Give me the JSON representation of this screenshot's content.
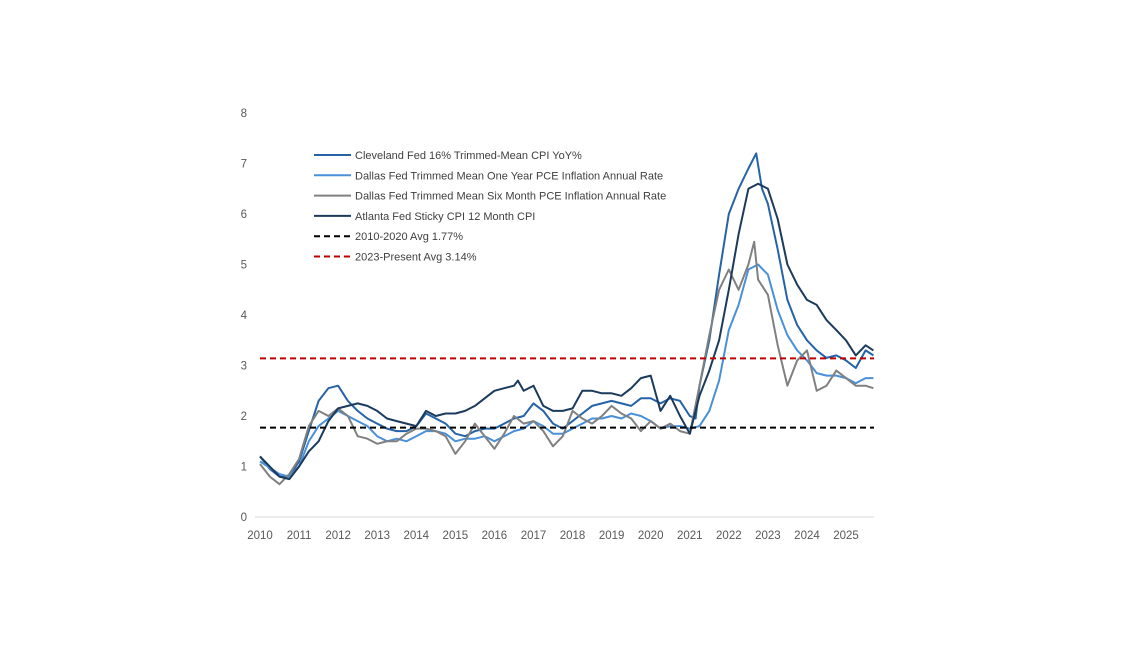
{
  "chart_data": {
    "type": "line",
    "title": "",
    "xlabel": "",
    "ylabel": "",
    "xlim": [
      2010,
      2025.7
    ],
    "ylim": [
      0,
      8
    ],
    "x_ticks": [
      "2010",
      "2011",
      "2012",
      "2013",
      "2014",
      "2015",
      "2016",
      "2017",
      "2018",
      "2019",
      "2020",
      "2021",
      "2022",
      "2023",
      "2024",
      "2025"
    ],
    "y_ticks": [
      "0",
      "1",
      "2",
      "3",
      "4",
      "5",
      "6",
      "7",
      "8"
    ],
    "grid": false,
    "legend_position": "top-left",
    "series": [
      {
        "name": "Cleveland Fed 16% Trimmed-Mean CPI YoY%",
        "color": "#2563a6",
        "x": [
          2010,
          2010.25,
          2010.5,
          2010.75,
          2011,
          2011.25,
          2011.5,
          2011.75,
          2012,
          2012.25,
          2012.5,
          2012.75,
          2013,
          2013.25,
          2013.5,
          2013.75,
          2014,
          2014.25,
          2014.5,
          2014.75,
          2015,
          2015.25,
          2015.5,
          2015.75,
          2016,
          2016.25,
          2016.5,
          2016.75,
          2017,
          2017.25,
          2017.5,
          2017.75,
          2018,
          2018.25,
          2018.5,
          2018.75,
          2019,
          2019.25,
          2019.5,
          2019.75,
          2020,
          2020.25,
          2020.5,
          2020.75,
          2021,
          2021.15,
          2021.25,
          2021.5,
          2021.75,
          2022,
          2022.25,
          2022.5,
          2022.7,
          2022.85,
          2023,
          2023.25,
          2023.5,
          2023.75,
          2024,
          2024.25,
          2024.5,
          2024.75,
          2025,
          2025.25,
          2025.5,
          2025.7
        ],
        "y": [
          1.2,
          0.95,
          0.8,
          0.8,
          1.1,
          1.7,
          2.3,
          2.55,
          2.6,
          2.3,
          2.1,
          1.95,
          1.85,
          1.75,
          1.7,
          1.7,
          1.8,
          2.05,
          1.95,
          1.85,
          1.65,
          1.6,
          1.7,
          1.75,
          1.75,
          1.85,
          1.95,
          2.0,
          2.25,
          2.1,
          1.85,
          1.75,
          1.9,
          2.05,
          2.2,
          2.25,
          2.3,
          2.25,
          2.2,
          2.35,
          2.35,
          2.25,
          2.35,
          2.3,
          2.0,
          1.95,
          2.6,
          3.5,
          4.8,
          6.0,
          6.5,
          6.9,
          7.2,
          6.5,
          6.2,
          5.3,
          4.3,
          3.8,
          3.5,
          3.3,
          3.15,
          3.2,
          3.1,
          2.95,
          3.3,
          3.2
        ]
      },
      {
        "name": "Dallas Fed Trimmed Mean One Year PCE Inflation Annual Rate",
        "color": "#4a90d9",
        "x": [
          2010,
          2010.5,
          2010.75,
          2011,
          2011.25,
          2011.5,
          2011.75,
          2012,
          2012.25,
          2012.5,
          2012.75,
          2013,
          2013.25,
          2013.5,
          2013.75,
          2014,
          2014.25,
          2014.5,
          2014.75,
          2015,
          2015.25,
          2015.5,
          2015.75,
          2016,
          2016.25,
          2016.5,
          2016.75,
          2017,
          2017.25,
          2017.5,
          2017.75,
          2018,
          2018.25,
          2018.5,
          2018.75,
          2019,
          2019.25,
          2019.5,
          2019.75,
          2020,
          2020.25,
          2020.5,
          2020.75,
          2021,
          2021.25,
          2021.5,
          2021.75,
          2022,
          2022.25,
          2022.5,
          2022.75,
          2023,
          2023.25,
          2023.5,
          2023.75,
          2024,
          2024.25,
          2024.5,
          2024.75,
          2025,
          2025.25,
          2025.5,
          2025.7
        ],
        "y": [
          1.1,
          0.85,
          0.8,
          1.0,
          1.5,
          1.8,
          1.95,
          2.1,
          2.0,
          1.9,
          1.8,
          1.6,
          1.5,
          1.55,
          1.5,
          1.6,
          1.7,
          1.7,
          1.65,
          1.5,
          1.55,
          1.55,
          1.6,
          1.5,
          1.6,
          1.7,
          1.75,
          1.9,
          1.8,
          1.65,
          1.65,
          1.75,
          1.85,
          1.95,
          1.95,
          2.0,
          1.95,
          2.05,
          2.0,
          1.9,
          1.75,
          1.8,
          1.8,
          1.75,
          1.8,
          2.1,
          2.7,
          3.7,
          4.2,
          4.9,
          5.0,
          4.8,
          4.1,
          3.6,
          3.3,
          3.1,
          2.85,
          2.8,
          2.8,
          2.75,
          2.65,
          2.75,
          2.75
        ]
      },
      {
        "name": "Dallas Fed Trimmed Mean Six Month PCE Inflation Annual Rate",
        "color": "#808080",
        "x": [
          2010,
          2010.25,
          2010.5,
          2010.75,
          2011,
          2011.25,
          2011.5,
          2011.75,
          2012,
          2012.25,
          2012.5,
          2012.75,
          2013,
          2013.25,
          2013.5,
          2013.75,
          2014,
          2014.25,
          2014.5,
          2014.75,
          2015,
          2015.25,
          2015.5,
          2015.75,
          2016,
          2016.25,
          2016.5,
          2016.75,
          2017,
          2017.25,
          2017.5,
          2017.75,
          2018,
          2018.25,
          2018.5,
          2018.75,
          2019,
          2019.25,
          2019.5,
          2019.75,
          2020,
          2020.25,
          2020.5,
          2020.75,
          2021,
          2021.25,
          2021.5,
          2021.75,
          2022,
          2022.25,
          2022.5,
          2022.65,
          2022.75,
          2023,
          2023.25,
          2023.5,
          2023.75,
          2024,
          2024.25,
          2024.5,
          2024.75,
          2025,
          2025.25,
          2025.5,
          2025.7
        ],
        "y": [
          1.05,
          0.8,
          0.65,
          0.85,
          1.15,
          1.8,
          2.1,
          2.0,
          2.15,
          2.0,
          1.6,
          1.55,
          1.45,
          1.5,
          1.5,
          1.65,
          1.75,
          1.75,
          1.7,
          1.6,
          1.25,
          1.5,
          1.85,
          1.6,
          1.35,
          1.65,
          2.0,
          1.85,
          1.9,
          1.7,
          1.4,
          1.6,
          2.1,
          1.95,
          1.85,
          2.0,
          2.2,
          2.05,
          1.95,
          1.7,
          1.9,
          1.75,
          1.85,
          1.7,
          1.65,
          2.6,
          3.6,
          4.5,
          4.9,
          4.5,
          5.0,
          5.45,
          4.7,
          4.4,
          3.4,
          2.6,
          3.1,
          3.3,
          2.5,
          2.6,
          2.9,
          2.75,
          2.6,
          2.6,
          2.55
        ]
      },
      {
        "name": "Atlanta Fed Sticky CPI 12 Month CPI",
        "color": "#1b3a5c",
        "x": [
          2010,
          2010.5,
          2010.75,
          2011,
          2011.25,
          2011.5,
          2011.75,
          2012,
          2012.25,
          2012.5,
          2012.75,
          2013,
          2013.25,
          2013.5,
          2013.75,
          2014,
          2014.25,
          2014.5,
          2014.75,
          2015,
          2015.25,
          2015.5,
          2015.75,
          2016,
          2016.25,
          2016.5,
          2016.6,
          2016.75,
          2017,
          2017.25,
          2017.5,
          2017.75,
          2018,
          2018.25,
          2018.5,
          2018.75,
          2019,
          2019.25,
          2019.5,
          2019.75,
          2020,
          2020.25,
          2020.5,
          2020.75,
          2021,
          2021.25,
          2021.5,
          2021.75,
          2022,
          2022.25,
          2022.5,
          2022.75,
          2023,
          2023.25,
          2023.5,
          2023.75,
          2024,
          2024.25,
          2024.5,
          2024.75,
          2025,
          2025.25,
          2025.5,
          2025.7
        ],
        "y": [
          1.2,
          0.8,
          0.75,
          1.0,
          1.3,
          1.5,
          1.9,
          2.15,
          2.2,
          2.25,
          2.2,
          2.1,
          1.95,
          1.9,
          1.85,
          1.8,
          2.1,
          2.0,
          2.05,
          2.05,
          2.1,
          2.2,
          2.35,
          2.5,
          2.55,
          2.6,
          2.7,
          2.5,
          2.6,
          2.2,
          2.1,
          2.1,
          2.15,
          2.5,
          2.5,
          2.45,
          2.45,
          2.4,
          2.55,
          2.75,
          2.8,
          2.1,
          2.4,
          2.0,
          1.65,
          2.4,
          2.9,
          3.5,
          4.5,
          5.6,
          6.5,
          6.6,
          6.5,
          5.9,
          5.0,
          4.6,
          4.3,
          4.2,
          3.9,
          3.7,
          3.5,
          3.2,
          3.4,
          3.3
        ]
      }
    ],
    "reference_lines": [
      {
        "name": "2010-2020 Avg 1.77%",
        "value": 1.77,
        "color": "#000000",
        "style": "dashed"
      },
      {
        "name": "2023-Present Avg 3.14%",
        "value": 3.14,
        "color": "#c00000",
        "style": "dashed"
      }
    ]
  }
}
